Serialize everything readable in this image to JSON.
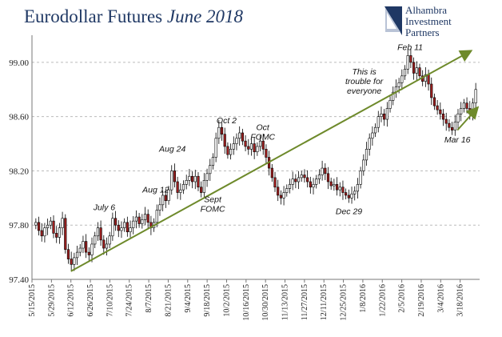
{
  "chart_data": {
    "type": "candlestick",
    "title_main": "Eurodollar Futures ",
    "title_italic": "June 2018",
    "logo": {
      "lines": [
        "Alhambra",
        "Investment",
        "Partners"
      ],
      "mark": "Alhambra Investment Partners logo"
    },
    "ylim": [
      97.4,
      99.2
    ],
    "yticks": [
      "97.40",
      "97.80",
      "98.20",
      "98.60",
      "99.00"
    ],
    "grid": "horizontal dashed",
    "xticks": [
      "5/15/2015",
      "5/29/2015",
      "6/12/2015",
      "6/26/2015",
      "7/10/2015",
      "7/24/2015",
      "8/7/2015",
      "8/21/2015",
      "9/4/2015",
      "9/18/2015",
      "10/2/2015",
      "10/16/2015",
      "10/30/2015",
      "11/13/2015",
      "11/27/2015",
      "12/11/2015",
      "12/25/2015",
      "1/8/2016",
      "1/22/2016",
      "2/5/2016",
      "2/19/2016",
      "3/4/2016",
      "3/18/2016"
    ],
    "close_series": [
      97.82,
      97.76,
      97.72,
      97.78,
      97.8,
      97.83,
      97.74,
      97.71,
      97.78,
      97.85,
      97.62,
      97.55,
      97.51,
      97.56,
      97.6,
      97.63,
      97.68,
      97.6,
      97.58,
      97.66,
      97.72,
      97.78,
      97.69,
      97.63,
      97.66,
      97.72,
      97.85,
      97.8,
      97.76,
      97.78,
      97.82,
      97.75,
      97.78,
      97.83,
      97.86,
      97.81,
      97.84,
      97.88,
      97.82,
      97.78,
      97.82,
      97.91,
      97.95,
      98.02,
      97.98,
      98.06,
      98.2,
      98.12,
      98.04,
      98.06,
      98.1,
      98.13,
      98.16,
      98.12,
      98.16,
      98.08,
      98.04,
      98.13,
      98.18,
      98.24,
      98.3,
      98.44,
      98.52,
      98.47,
      98.38,
      98.32,
      98.36,
      98.4,
      98.44,
      98.48,
      98.42,
      98.38,
      98.36,
      98.4,
      98.34,
      98.38,
      98.42,
      98.36,
      98.3,
      98.22,
      98.15,
      98.08,
      98.02,
      98.0,
      98.04,
      98.07,
      98.1,
      98.14,
      98.12,
      98.15,
      98.17,
      98.15,
      98.12,
      98.08,
      98.1,
      98.14,
      98.17,
      98.22,
      98.18,
      98.12,
      98.09,
      98.1,
      98.06,
      98.08,
      98.04,
      98.02,
      98.0,
      98.03,
      98.05,
      98.1,
      98.2,
      98.28,
      98.36,
      98.44,
      98.48,
      98.52,
      98.6,
      98.62,
      98.58,
      98.66,
      98.72,
      98.78,
      98.82,
      98.85,
      98.9,
      98.95,
      99.05,
      99.0,
      98.92,
      98.96,
      98.9,
      98.86,
      98.91,
      98.84,
      98.74,
      98.68,
      98.65,
      98.62,
      98.58,
      98.55,
      98.52,
      98.5,
      98.56,
      98.62,
      98.66,
      98.7,
      98.66,
      98.62,
      98.7,
      98.8
    ],
    "trendlines": [
      {
        "from": [
          "6/12/2015",
          97.46
        ],
        "to": [
          "3/25/2016",
          99.08
        ]
      },
      {
        "from": [
          "3/16/2016",
          98.5
        ],
        "to": [
          "3/30/2016",
          98.66
        ]
      }
    ],
    "annotations": [
      {
        "text": "July 6",
        "date": "7/6/2015",
        "value": 97.91
      },
      {
        "text": "Aug 12",
        "date": "8/12/2015",
        "value": 98.04
      },
      {
        "text": "Aug 24",
        "date": "8/24/2015",
        "value": 98.34
      },
      {
        "text": "Sept",
        "date": "9/22/2015",
        "value": 97.97
      },
      {
        "text": "FOMC",
        "date": "9/22/2015",
        "value": 97.9
      },
      {
        "text": "Oct 2",
        "date": "10/2/2015",
        "value": 98.55
      },
      {
        "text": "Oct",
        "date": "10/28/2015",
        "value": 98.5
      },
      {
        "text": "FOMC",
        "date": "10/28/2015",
        "value": 98.43
      },
      {
        "text": "This is",
        "date": "1/9/2016",
        "value": 98.91
      },
      {
        "text": "trouble for",
        "date": "1/9/2016",
        "value": 98.84
      },
      {
        "text": "everyone",
        "date": "1/9/2016",
        "value": 98.77
      },
      {
        "text": "Dec 29",
        "date": "12/29/2015",
        "value": 97.88
      },
      {
        "text": "Feb 11",
        "date": "2/11/2016",
        "value": 99.09
      },
      {
        "text": "Mar 16",
        "date": "3/16/2016",
        "value": 98.41
      }
    ]
  }
}
